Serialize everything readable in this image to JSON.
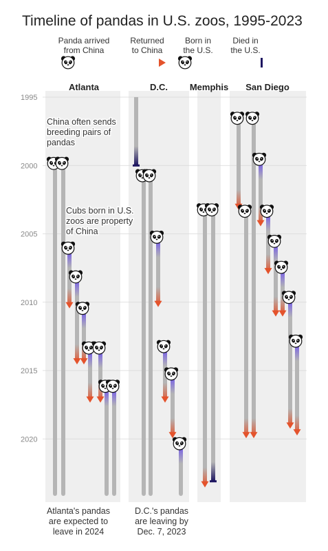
{
  "chart_data": {
    "type": "timeline",
    "title": "Timeline of pandas in U.S. zoos, 1995-2023",
    "legend": [
      {
        "key": "arrived",
        "label_lines": [
          "Panda arrived",
          "from China"
        ]
      },
      {
        "key": "returned",
        "label_lines": [
          "Returned",
          "to China"
        ]
      },
      {
        "key": "born",
        "label_lines": [
          "Born in",
          "the U.S."
        ]
      },
      {
        "key": "died",
        "label_lines": [
          "Died in",
          "the U.S."
        ]
      }
    ],
    "y_ticks": [
      1995,
      2000,
      2005,
      2010,
      2015,
      2020
    ],
    "ylim": [
      1995,
      2024.2
    ],
    "colors": {
      "bar": "#b5b5b5",
      "panel": "#efefef",
      "returned": "#e4532c",
      "born": "#6b4ff0",
      "died": "#1d1560",
      "text": "#222222",
      "tick": "#888888"
    },
    "zoos": [
      {
        "name": "Atlanta",
        "pandas": [
          {
            "start": 1999.9,
            "end": 2024,
            "origin": "arrived",
            "fate": "remaining"
          },
          {
            "start": 1999.9,
            "end": 2024,
            "origin": "arrived",
            "fate": "remaining"
          },
          {
            "start": 2006.1,
            "end": 2010.4,
            "origin": "born",
            "fate": "returned"
          },
          {
            "start": 2008.2,
            "end": 2014.5,
            "origin": "born",
            "fate": "returned"
          },
          {
            "start": 2010.5,
            "end": 2014.5,
            "origin": "born",
            "fate": "returned"
          },
          {
            "start": 2013.4,
            "end": 2017.3,
            "origin": "born",
            "fate": "returned"
          },
          {
            "start": 2013.4,
            "end": 2017.3,
            "origin": "born",
            "fate": "returned"
          },
          {
            "start": 2016.2,
            "end": 2024,
            "origin": "born",
            "fate": "remaining"
          },
          {
            "start": 2016.2,
            "end": 2024,
            "origin": "born",
            "fate": "remaining"
          }
        ],
        "notes": [
          {
            "lines": [
              "China often sends",
              "breeding pairs of",
              "pandas"
            ]
          },
          {
            "lines": [
              "Cubs born in U.S.",
              "zoos are property",
              "of China"
            ]
          }
        ],
        "footnote_lines": [
          "Atlanta's pandas",
          "are expected to",
          "leave in 2024"
        ]
      },
      {
        "name": "D.C.",
        "pandas": [
          {
            "start": 1995,
            "end": 2000,
            "origin": "arrived",
            "fate": "died"
          },
          {
            "start": 2000.8,
            "end": 2024,
            "origin": "arrived",
            "fate": "remaining"
          },
          {
            "start": 2000.8,
            "end": 2024,
            "origin": "arrived",
            "fate": "remaining"
          },
          {
            "start": 2005.3,
            "end": 2010.3,
            "origin": "born",
            "fate": "returned"
          },
          {
            "start": 2013.3,
            "end": 2017.3,
            "origin": "born",
            "fate": "returned"
          },
          {
            "start": 2015.3,
            "end": 2019.9,
            "origin": "born",
            "fate": "returned"
          },
          {
            "start": 2020.4,
            "end": 2024,
            "origin": "born",
            "fate": "remaining"
          }
        ],
        "footnote_lines": [
          "D.C.'s pandas",
          "are leaving by",
          "Dec. 7, 2023"
        ]
      },
      {
        "name": "Memphis",
        "pandas": [
          {
            "start": 2003.3,
            "end": 2023.5,
            "origin": "arrived",
            "fate": "returned"
          },
          {
            "start": 2003.3,
            "end": 2023.1,
            "origin": "arrived",
            "fate": "died"
          }
        ]
      },
      {
        "name": "San Diego",
        "pandas": [
          {
            "start": 1996.6,
            "end": 2003.2,
            "origin": "arrived",
            "fate": "returned"
          },
          {
            "start": 1996.6,
            "end": 2019.9,
            "origin": "arrived",
            "fate": "returned"
          },
          {
            "start": 1999.6,
            "end": 2004.4,
            "origin": "born",
            "fate": "returned"
          },
          {
            "start": 2003.4,
            "end": 2019.9,
            "origin": "arrived",
            "fate": "returned"
          },
          {
            "start": 2003.4,
            "end": 2007.9,
            "origin": "born",
            "fate": "returned"
          },
          {
            "start": 2005.6,
            "end": 2011.0,
            "origin": "born",
            "fate": "returned"
          },
          {
            "start": 2007.5,
            "end": 2011.0,
            "origin": "born",
            "fate": "returned"
          },
          {
            "start": 2009.7,
            "end": 2019.2,
            "origin": "born",
            "fate": "returned"
          },
          {
            "start": 2012.9,
            "end": 2019.7,
            "origin": "born",
            "fate": "returned"
          }
        ]
      }
    ]
  }
}
